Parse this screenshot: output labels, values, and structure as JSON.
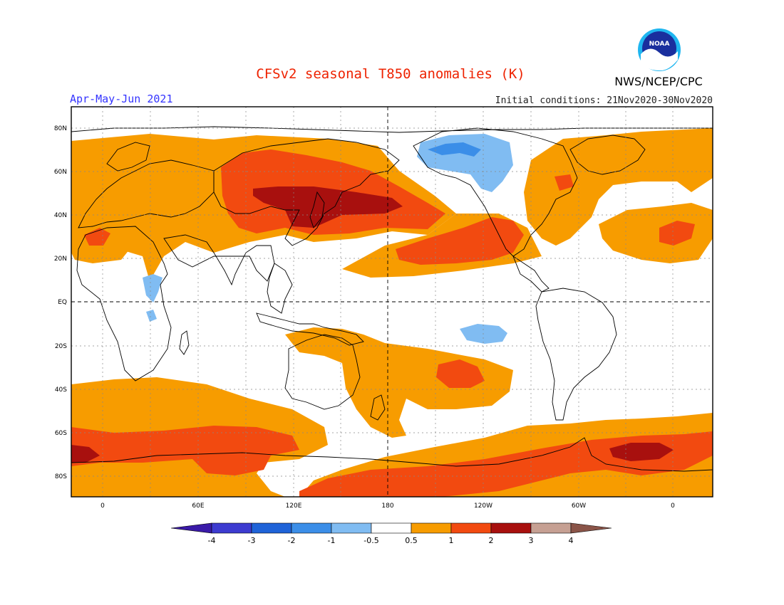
{
  "header": {
    "title": "CFSv2 seasonal T850 anomalies (K)",
    "period": "Apr-May-Jun 2021",
    "initial_conditions": "Initial conditions: 21Nov2020-30Nov2020",
    "agency": "NWS/NCEP/CPC",
    "logo_text": "NOAA"
  },
  "colors": {
    "title": "#ee2200",
    "period": "#3333ff",
    "ocean": "#ffffff",
    "coast": "#000000"
  },
  "map": {
    "lat_labels": [
      "80N",
      "60N",
      "40N",
      "20N",
      "EQ",
      "20S",
      "40S",
      "60S",
      "80S"
    ],
    "lon_labels": [
      "0",
      "60E",
      "120E",
      "180",
      "120W",
      "60W",
      "0"
    ]
  },
  "colorbar": {
    "labels": [
      "-4",
      "-3",
      "-2",
      "-1",
      "-0.5",
      "0.5",
      "1",
      "2",
      "3",
      "4"
    ],
    "colors": [
      "#3a1aa8",
      "#3d3bd0",
      "#1f63d8",
      "#3b8ee8",
      "#80bcf2",
      "#ffffff",
      "#f79c00",
      "#f24a10",
      "#a8100e",
      "#c6a093",
      "#8a5448"
    ]
  }
}
